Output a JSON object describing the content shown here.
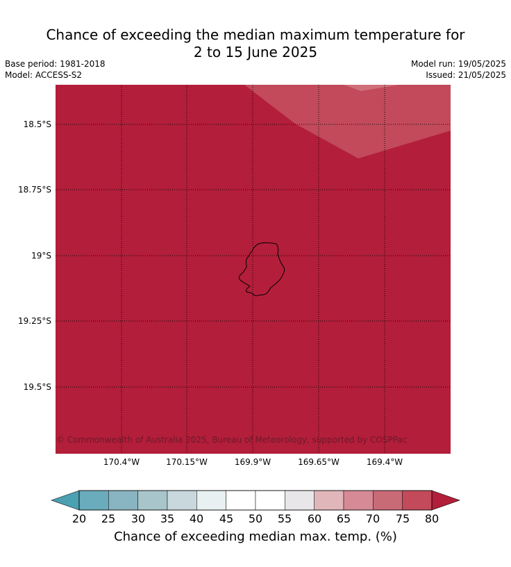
{
  "header": {
    "title_line1": "Chance of exceeding the median maximum temperature for",
    "title_line2": "2 to 15 June 2025",
    "base_period": "Base period: 1981-2018",
    "model": "Model: ACCESS-S2",
    "model_run": "Model run: 19/05/2025",
    "issued": "Issued: 21/05/2025"
  },
  "map": {
    "latitude_labels": [
      "18.5°S",
      "18.75°S",
      "19°S",
      "19.25°S",
      "19.5°S"
    ],
    "longitude_labels": [
      "170.4°W",
      "170.15°W",
      "169.9°W",
      "169.65°W",
      "169.4°W"
    ],
    "copyright": "© Commonwealth of Australia 2025, Bureau of Meteorology, supported by COSPPac",
    "colors": {
      "background_80_plus": "#b31e3a",
      "band_75_80": "#c24a5a",
      "band_70_75": "#cf6f7a"
    }
  },
  "colorbar": {
    "label": "Chance of exceeding median max. temp. (%)",
    "ticks": [
      "20",
      "25",
      "30",
      "35",
      "40",
      "45",
      "50",
      "55",
      "60",
      "65",
      "70",
      "75",
      "80"
    ],
    "colors": [
      "#4ba0b1",
      "#6aabbc",
      "#89b4c1",
      "#a7c5ca",
      "#c8d8dc",
      "#e9f0f2",
      "#ffffff",
      "#ffffff",
      "#e8e6e8",
      "#e0b6bb",
      "#d58a95",
      "#c96a77",
      "#c24a5a",
      "#b31e3a"
    ]
  }
}
